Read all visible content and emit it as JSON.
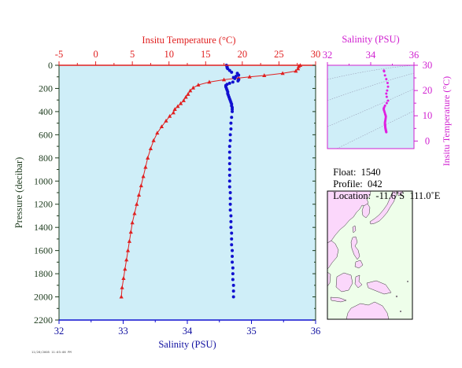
{
  "colors": {
    "background": "#cfeef8",
    "temperature": "#e02020",
    "salinity_main": "#1010d0",
    "salinity_inset": "#e020e0",
    "axis_dark": "#1c3a1c",
    "salinity_axis_label": "#1010a0",
    "inset_axis": "#d020d0",
    "map_land": "#fbd7fb",
    "map_sea": "#eefeea",
    "isopycnal": "#9aa0b8"
  },
  "chart_data": [
    {
      "type": "scatter",
      "name": "main-profile",
      "title": "",
      "xlabel": "Salinity (PSU)",
      "x2label": "Insitu Temperature (°C)",
      "ylabel": "Pressure (decibar)",
      "xlim": [
        32,
        36
      ],
      "x2lim": [
        -5,
        30
      ],
      "ylim": [
        2200,
        0
      ],
      "y_inverted": true,
      "xticks": [
        32,
        33,
        34,
        35,
        36
      ],
      "x2ticks": [
        -5,
        0,
        5,
        10,
        15,
        20,
        25,
        30
      ],
      "yticks": [
        0,
        200,
        400,
        600,
        800,
        1000,
        1200,
        1400,
        1600,
        1800,
        2000,
        2200
      ],
      "grid": false,
      "series": [
        {
          "name": "temperature",
          "axis": "top",
          "marker": "triangle",
          "points": [
            [
              27.9,
              0
            ],
            [
              27.7,
              10
            ],
            [
              27.6,
              30
            ],
            [
              27.3,
              50
            ],
            [
              25.5,
              70
            ],
            [
              23.0,
              88
            ],
            [
              21.0,
              100
            ],
            [
              19.5,
              110
            ],
            [
              17.5,
              125
            ],
            [
              15.5,
              145
            ],
            [
              14.0,
              170
            ],
            [
              13.3,
              195
            ],
            [
              12.9,
              220
            ],
            [
              12.6,
              250
            ],
            [
              12.3,
              275
            ],
            [
              12.0,
              305
            ],
            [
              11.6,
              330
            ],
            [
              11.2,
              355
            ],
            [
              10.8,
              380
            ],
            [
              10.6,
              410
            ],
            [
              10.1,
              440
            ],
            [
              9.6,
              480
            ],
            [
              9.0,
              530
            ],
            [
              8.4,
              585
            ],
            [
              7.9,
              650
            ],
            [
              7.5,
              720
            ],
            [
              7.1,
              800
            ],
            [
              6.8,
              880
            ],
            [
              6.5,
              960
            ],
            [
              6.2,
              1040
            ],
            [
              5.9,
              1120
            ],
            [
              5.6,
              1200
            ],
            [
              5.3,
              1280
            ],
            [
              5.0,
              1360
            ],
            [
              4.8,
              1440
            ],
            [
              4.6,
              1520
            ],
            [
              4.4,
              1600
            ],
            [
              4.2,
              1680
            ],
            [
              4.0,
              1760
            ],
            [
              3.8,
              1840
            ],
            [
              3.6,
              1920
            ],
            [
              3.5,
              2000
            ]
          ]
        },
        {
          "name": "salinity",
          "axis": "bottom",
          "marker": "circle",
          "points": [
            [
              34.61,
              0
            ],
            [
              34.62,
              10
            ],
            [
              34.62,
              20
            ],
            [
              34.63,
              30
            ],
            [
              34.66,
              45
            ],
            [
              34.69,
              60
            ],
            [
              34.78,
              70
            ],
            [
              34.8,
              85
            ],
            [
              34.76,
              95
            ],
            [
              34.72,
              105
            ],
            [
              34.74,
              115
            ],
            [
              34.8,
              125
            ],
            [
              34.79,
              135
            ],
            [
              34.71,
              145
            ],
            [
              34.66,
              155
            ],
            [
              34.62,
              165
            ],
            [
              34.6,
              175
            ],
            [
              34.6,
              185
            ],
            [
              34.61,
              200
            ],
            [
              34.62,
              215
            ],
            [
              34.63,
              230
            ],
            [
              34.63,
              245
            ],
            [
              34.64,
              260
            ],
            [
              34.65,
              275
            ],
            [
              34.66,
              290
            ],
            [
              34.67,
              305
            ],
            [
              34.68,
              320
            ],
            [
              34.69,
              335
            ],
            [
              34.69,
              350
            ],
            [
              34.7,
              365
            ],
            [
              34.7,
              380
            ],
            [
              34.7,
              400
            ],
            [
              34.69,
              450
            ],
            [
              34.68,
              500
            ],
            [
              34.68,
              550
            ],
            [
              34.67,
              600
            ],
            [
              34.67,
              650
            ],
            [
              34.66,
              700
            ],
            [
              34.66,
              750
            ],
            [
              34.66,
              800
            ],
            [
              34.66,
              850
            ],
            [
              34.66,
              900
            ],
            [
              34.66,
              950
            ],
            [
              34.66,
              1000
            ],
            [
              34.66,
              1050
            ],
            [
              34.67,
              1100
            ],
            [
              34.67,
              1150
            ],
            [
              34.67,
              1200
            ],
            [
              34.67,
              1250
            ],
            [
              34.68,
              1300
            ],
            [
              34.68,
              1350
            ],
            [
              34.68,
              1400
            ],
            [
              34.69,
              1450
            ],
            [
              34.69,
              1500
            ],
            [
              34.69,
              1550
            ],
            [
              34.7,
              1600
            ],
            [
              34.7,
              1650
            ],
            [
              34.7,
              1700
            ],
            [
              34.71,
              1750
            ],
            [
              34.71,
              1800
            ],
            [
              34.71,
              1850
            ],
            [
              34.72,
              1900
            ],
            [
              34.72,
              1950
            ],
            [
              34.72,
              2000
            ]
          ]
        }
      ]
    },
    {
      "type": "scatter",
      "name": "ts-diagram",
      "title": "",
      "xlabel": "Salinity (PSU)",
      "ylabel": "Insitu Temperature (°C)",
      "xlim": [
        32,
        36
      ],
      "ylim": [
        -3,
        30
      ],
      "xticks": [
        32,
        34,
        36
      ],
      "yticks": [
        0,
        10,
        20,
        30
      ],
      "grid": false,
      "series": [
        {
          "name": "",
          "marker": "circle",
          "points": [
            [
              34.61,
              27.9
            ],
            [
              34.62,
              27.6
            ],
            [
              34.66,
              26.0
            ],
            [
              34.72,
              24.5
            ],
            [
              34.78,
              23.0
            ],
            [
              34.8,
              21.5
            ],
            [
              34.76,
              20.0
            ],
            [
              34.72,
              18.8
            ],
            [
              34.74,
              17.5
            ],
            [
              34.8,
              16.0
            ],
            [
              34.74,
              15.0
            ],
            [
              34.66,
              14.0
            ],
            [
              34.62,
              13.3
            ],
            [
              34.6,
              12.8
            ],
            [
              34.61,
              12.3
            ],
            [
              34.63,
              11.8
            ],
            [
              34.65,
              11.2
            ],
            [
              34.67,
              10.6
            ],
            [
              34.69,
              10.1
            ],
            [
              34.7,
              9.6
            ],
            [
              34.69,
              9.0
            ],
            [
              34.68,
              8.4
            ],
            [
              34.67,
              7.9
            ],
            [
              34.66,
              7.5
            ],
            [
              34.66,
              7.1
            ],
            [
              34.66,
              6.8
            ],
            [
              34.66,
              6.5
            ],
            [
              34.67,
              6.2
            ],
            [
              34.67,
              5.9
            ],
            [
              34.67,
              5.6
            ],
            [
              34.68,
              5.3
            ],
            [
              34.68,
              5.0
            ],
            [
              34.69,
              4.8
            ],
            [
              34.69,
              4.6
            ],
            [
              34.7,
              4.4
            ],
            [
              34.7,
              4.2
            ],
            [
              34.71,
              4.0
            ],
            [
              34.71,
              3.8
            ],
            [
              34.72,
              3.6
            ],
            [
              34.72,
              3.5
            ]
          ]
        }
      ]
    }
  ],
  "info": {
    "float_label": "Float:",
    "float_value": "1540",
    "profile_label": "Profile:",
    "profile_value": "042",
    "location_label": "Location:",
    "location_value": "-11.6˚S  111.0˚E"
  },
  "footer_stamp": "11/28/2005 11:03:06 PM"
}
